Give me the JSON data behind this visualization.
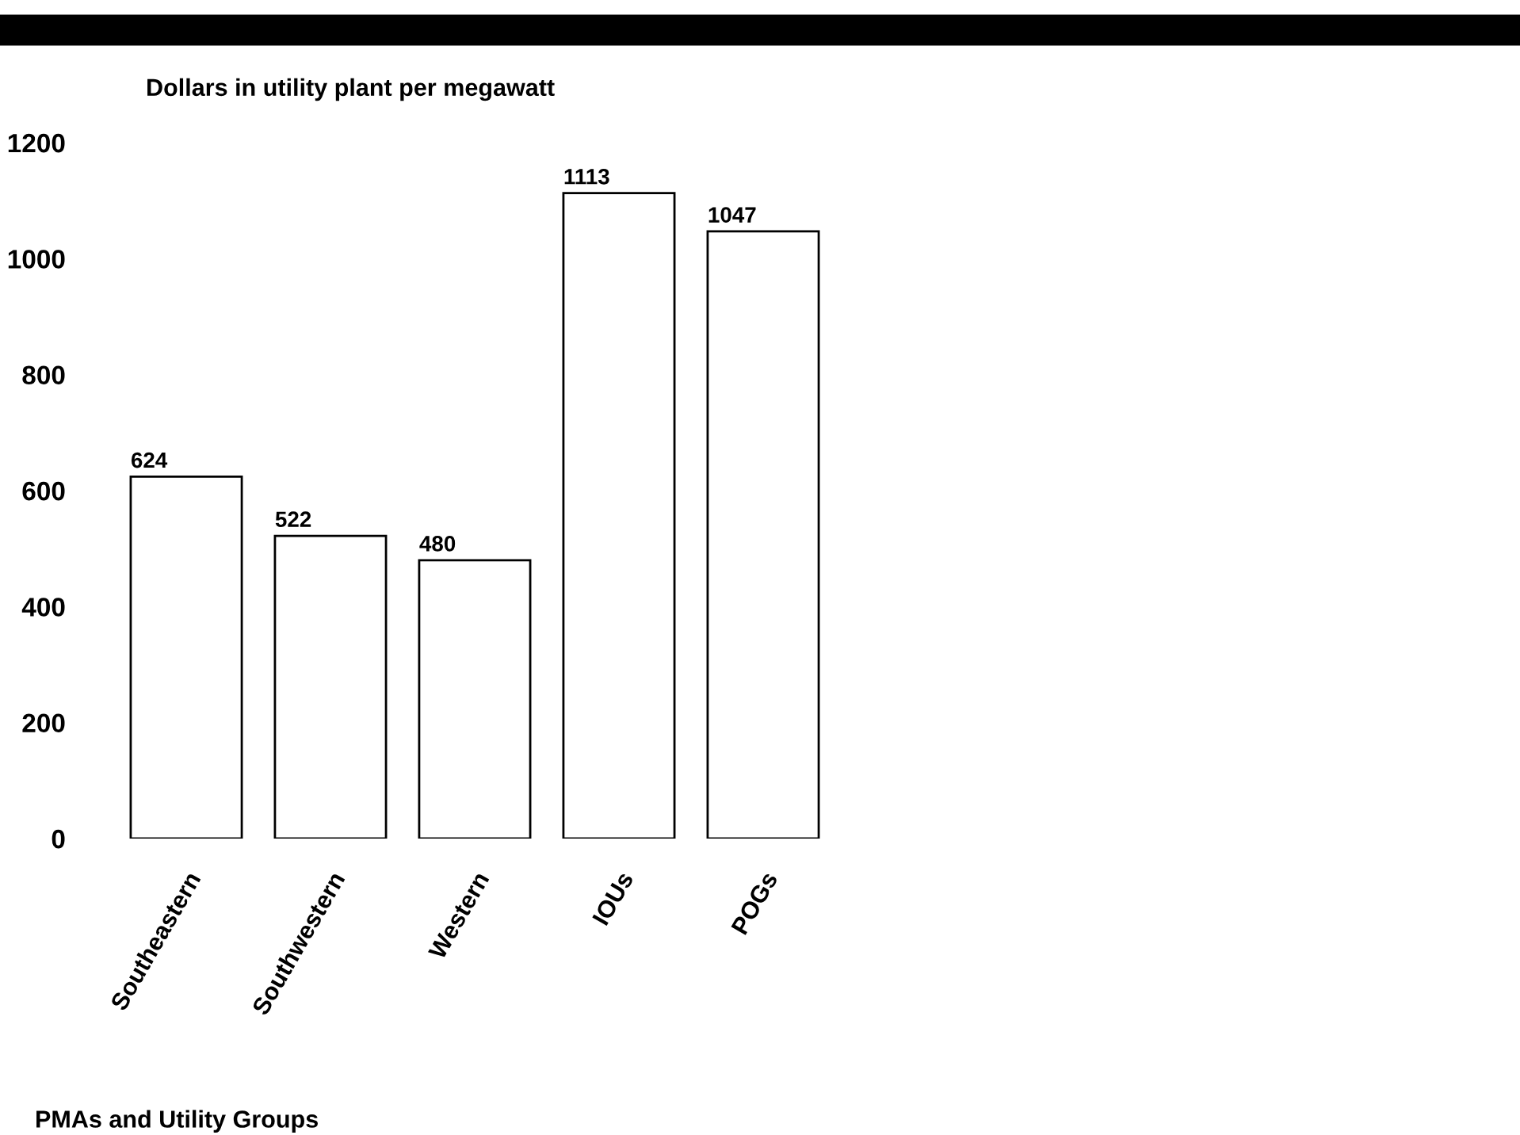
{
  "chart_data": {
    "type": "bar",
    "ylabel": "Dollars in utility plant per megawatt",
    "xlabel": "PMAs and Utility Groups",
    "categories": [
      "Southeastern",
      "Southwestern",
      "Western",
      "IOUs",
      "POGs"
    ],
    "values": [
      624,
      522,
      480,
      1113,
      1047
    ],
    "color": "#ffffff",
    "ylim": [
      0,
      1200
    ],
    "yticks": [
      0,
      200,
      400,
      600,
      800,
      1000,
      1200
    ],
    "grid": false,
    "data_labels": true
  }
}
